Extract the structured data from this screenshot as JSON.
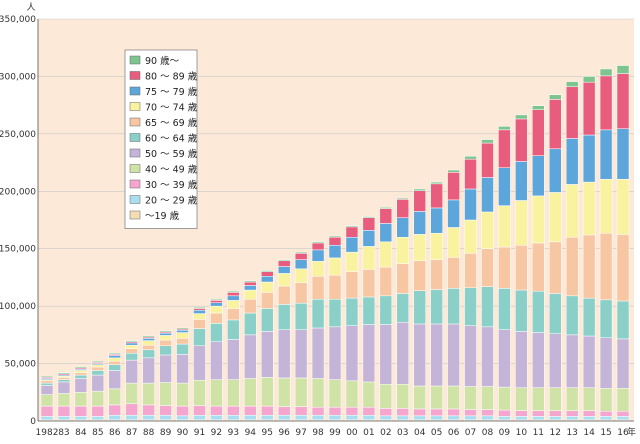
{
  "chart_data": {
    "type": "bar",
    "stacked": true,
    "unit_label": "人",
    "x_suffix": "年",
    "ylim": [
      0,
      350000
    ],
    "y_ticks": [
      "0",
      "50,000",
      "100,000",
      "150,000",
      "200,000",
      "250,000",
      "300,000",
      "350,000"
    ],
    "grid": true,
    "legend_position": "top-left",
    "categories": [
      "1982",
      "83",
      "84",
      "85",
      "86",
      "87",
      "88",
      "89",
      "90",
      "91",
      "92",
      "93",
      "94",
      "95",
      "96",
      "97",
      "98",
      "99",
      "00",
      "01",
      "02",
      "03",
      "04",
      "05",
      "06",
      "07",
      "08",
      "09",
      "10",
      "11",
      "12",
      "13",
      "14",
      "15",
      "16"
    ],
    "series": [
      {
        "name": "～19 歳",
        "color": "#f4dcb4",
        "values": [
          1000,
          1000,
          1000,
          1000,
          1000,
          1000,
          1000,
          1000,
          1000,
          1000,
          1000,
          1000,
          1000,
          1000,
          1000,
          1000,
          1000,
          1000,
          1000,
          1000,
          1000,
          1000,
          1000,
          1000,
          1000,
          1000,
          1000,
          1000,
          1000,
          1000,
          1000,
          1000,
          1000,
          1000,
          1000
        ]
      },
      {
        "name": "20 ～ 29 歳",
        "color": "#a9def0",
        "values": [
          3000,
          3000,
          3000,
          3000,
          4000,
          4000,
          4000,
          4000,
          3500,
          4000,
          4000,
          4000,
          4000,
          4000,
          4000,
          4000,
          4000,
          4000,
          4000,
          4000,
          3500,
          3500,
          3500,
          3500,
          3500,
          3500,
          3500,
          3000,
          3000,
          3000,
          3000,
          3000,
          3000,
          3000,
          3000
        ]
      },
      {
        "name": "30 ～ 39 歳",
        "color": "#f4a6cf",
        "values": [
          9000,
          9000,
          9000,
          9000,
          9000,
          10000,
          9000,
          8500,
          8500,
          8500,
          8000,
          8000,
          8000,
          8000,
          7500,
          7500,
          7000,
          7000,
          7000,
          7000,
          6500,
          6500,
          6000,
          6000,
          6000,
          5500,
          5500,
          5500,
          5000,
          5000,
          5000,
          5000,
          5000,
          4500,
          4500
        ]
      },
      {
        "name": "40 ～ 49 歳",
        "color": "#cfe3a6",
        "values": [
          10000,
          11000,
          12000,
          13000,
          14000,
          18000,
          19000,
          20000,
          20000,
          22000,
          23000,
          23000,
          24000,
          25000,
          25000,
          25000,
          25000,
          24000,
          23000,
          22000,
          21000,
          21000,
          20000,
          20000,
          20000,
          20000,
          20000,
          20000,
          20000,
          20000,
          20000,
          20000,
          20000,
          20000,
          20000
        ]
      },
      {
        "name": "50 ～ 59 歳",
        "color": "#c4b4d8",
        "values": [
          8000,
          10000,
          12000,
          14000,
          16000,
          20000,
          22000,
          24000,
          25000,
          30000,
          33000,
          35000,
          38000,
          40000,
          42000,
          42000,
          44000,
          46000,
          48000,
          50000,
          52000,
          54000,
          54000,
          54000,
          54000,
          53000,
          52000,
          50000,
          49000,
          48000,
          47000,
          46000,
          45000,
          44000,
          43000
        ]
      },
      {
        "name": "60 ～ 64 歳",
        "color": "#8ad0c8",
        "values": [
          2000,
          2000,
          3000,
          4000,
          5000,
          6000,
          7000,
          8000,
          9000,
          15000,
          16000,
          17000,
          19000,
          20000,
          22000,
          23000,
          25000,
          24000,
          24000,
          24000,
          25000,
          25000,
          29000,
          30000,
          31000,
          33000,
          35000,
          36000,
          36000,
          36000,
          35000,
          34000,
          33000,
          33000,
          33000
        ]
      },
      {
        "name": "65 ～ 69 歳",
        "color": "#f7c6a2",
        "values": [
          2000,
          2000,
          2000,
          3000,
          3000,
          4000,
          4000,
          5000,
          5000,
          8000,
          9000,
          10000,
          12000,
          14000,
          16000,
          18000,
          20000,
          21000,
          23000,
          24000,
          25000,
          26000,
          26000,
          26000,
          27000,
          30000,
          33000,
          36000,
          39000,
          42000,
          45000,
          51000,
          55000,
          58000,
          58000
        ]
      },
      {
        "name": "70 ～ 74 歳",
        "color": "#f9f29e",
        "values": [
          1000,
          1000,
          2000,
          2000,
          3000,
          3000,
          4000,
          4000,
          5000,
          5000,
          6000,
          7000,
          8000,
          9000,
          11000,
          12000,
          13000,
          15000,
          17000,
          20000,
          22000,
          23000,
          23000,
          23000,
          26000,
          29000,
          32000,
          36000,
          39000,
          41000,
          43000,
          46000,
          46000,
          47000,
          48000
        ]
      },
      {
        "name": "75 ～ 79 歳",
        "color": "#5ca6dc",
        "values": [
          1000,
          1000,
          1000,
          1000,
          2000,
          2000,
          2000,
          2000,
          2000,
          3000,
          3000,
          4000,
          4000,
          5000,
          6000,
          8000,
          10000,
          11000,
          13000,
          14000,
          16000,
          17000,
          20000,
          22000,
          24000,
          27000,
          30000,
          33000,
          34000,
          35000,
          38000,
          40000,
          41000,
          43000,
          44000
        ]
      },
      {
        "name": "80 ～ 89 歳",
        "color": "#e85c7e",
        "values": [
          1000,
          1000,
          1000,
          1000,
          1000,
          1000,
          1000,
          1000,
          1000,
          1500,
          2000,
          3000,
          3000,
          4000,
          5000,
          5500,
          6000,
          7000,
          9000,
          11000,
          13000,
          16000,
          18000,
          21000,
          24000,
          26000,
          30000,
          33000,
          37000,
          40000,
          43000,
          45000,
          46000,
          47000,
          48000
        ]
      },
      {
        "name": "90 歳～",
        "color": "#7dc48f",
        "values": [
          1000,
          1000,
          1000,
          1000,
          1000,
          1000,
          1000,
          1000,
          1000,
          1000,
          1000,
          1000,
          1000,
          1000,
          1000,
          1000,
          1000,
          1000,
          1000,
          1000,
          1000,
          1000,
          1500,
          1500,
          2000,
          2500,
          3000,
          3000,
          3500,
          3500,
          4000,
          4500,
          5000,
          6000,
          7000
        ]
      }
    ]
  }
}
